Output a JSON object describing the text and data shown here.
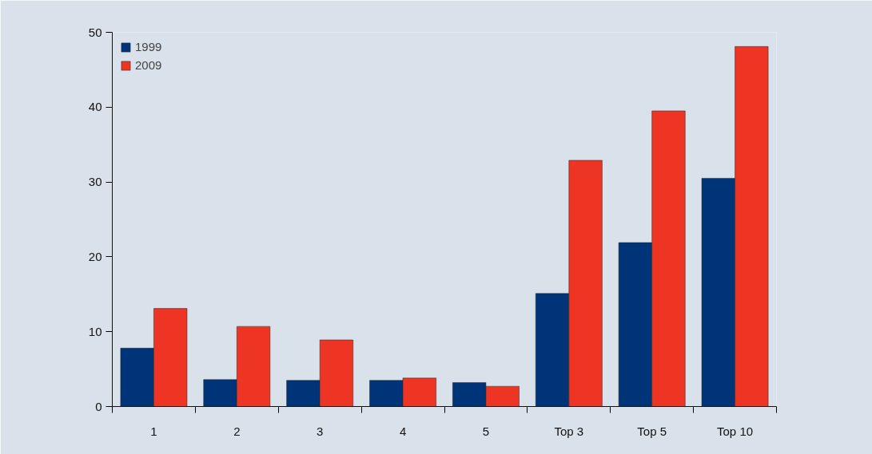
{
  "chart_data": {
    "type": "bar",
    "categories": [
      "1",
      "2",
      "3",
      "4",
      "5",
      "Top 3",
      "Top 5",
      "Top 10"
    ],
    "series": [
      {
        "name": "1999",
        "color": "#003478",
        "values": [
          7.8,
          3.6,
          3.5,
          3.5,
          3.2,
          15.1,
          21.9,
          30.5
        ]
      },
      {
        "name": "2009",
        "color": "#ee3524",
        "values": [
          13.1,
          10.7,
          8.9,
          3.8,
          2.7,
          32.9,
          39.5,
          48.1
        ]
      }
    ],
    "ylim": [
      0,
      50
    ],
    "yticks": [
      0,
      10,
      20,
      30,
      40,
      50
    ],
    "grid": false,
    "legend": "top left"
  }
}
